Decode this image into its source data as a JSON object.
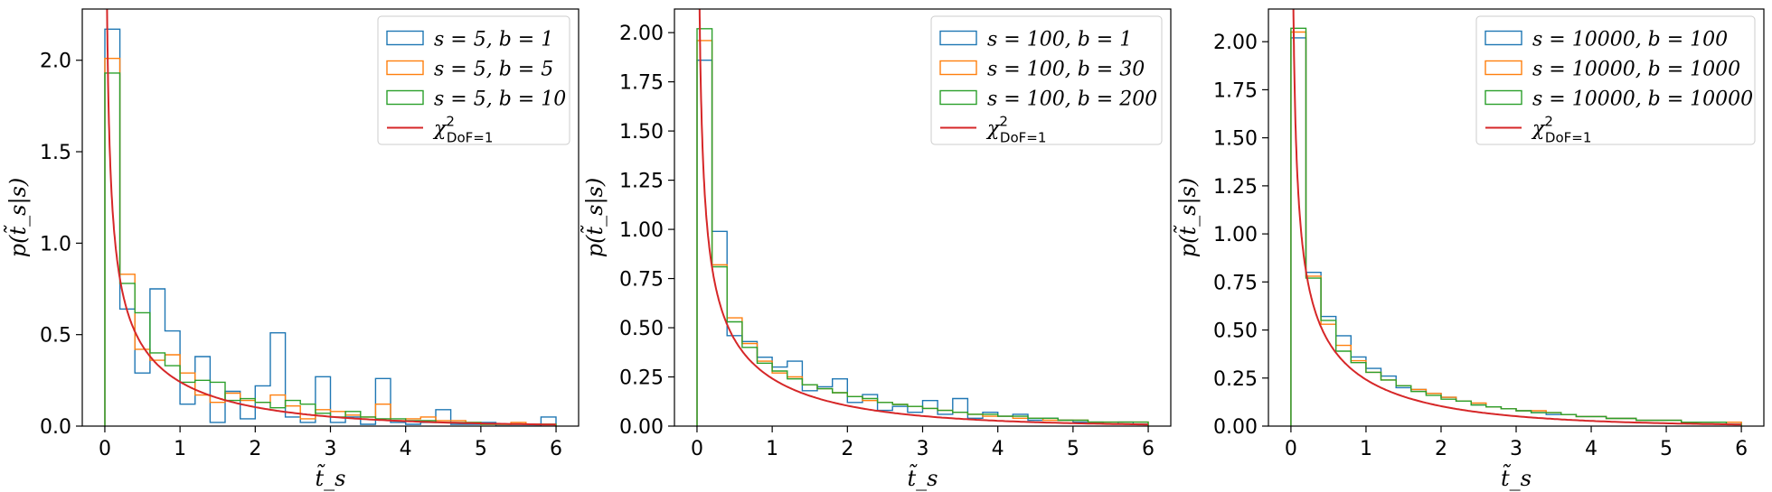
{
  "chart_data": [
    {
      "type": "line",
      "title": "",
      "xlabel": "t̃_s",
      "ylabel": "p(t̃_s|s)",
      "xlim": [
        -0.3,
        6.3
      ],
      "ylim": [
        0,
        2.28
      ],
      "xticks": [
        0,
        1,
        2,
        3,
        4,
        5,
        6
      ],
      "xtick_labels": [
        "0",
        "1",
        "2",
        "3",
        "4",
        "5",
        "6"
      ],
      "yticks": [
        0,
        0.5,
        1.0,
        1.5,
        2.0
      ],
      "ytick_labels": [
        "0.0",
        "0.5",
        "1.0",
        "1.5",
        "2.0"
      ],
      "grid": false,
      "legend_position": "top-right",
      "bin_width": 0.2,
      "series": [
        {
          "name": "s = 5, b = 1",
          "kind": "hist",
          "color": "#1f77b4",
          "values": [
            2.17,
            0.64,
            0.29,
            0.75,
            0.52,
            0.12,
            0.38,
            0.02,
            0.19,
            0.04,
            0.22,
            0.51,
            0.05,
            0.02,
            0.27,
            0.02,
            0.05,
            0.01,
            0.26,
            0.02,
            0.01,
            0.02,
            0.09,
            0.01,
            0.01,
            0.02,
            0.0,
            0.0,
            0.0,
            0.05
          ]
        },
        {
          "name": "s = 5, b = 5",
          "kind": "hist",
          "color": "#ff7f0e",
          "values": [
            2.01,
            0.83,
            0.42,
            0.36,
            0.39,
            0.29,
            0.17,
            0.13,
            0.18,
            0.14,
            0.13,
            0.17,
            0.11,
            0.04,
            0.09,
            0.08,
            0.06,
            0.05,
            0.12,
            0.03,
            0.04,
            0.05,
            0.03,
            0.03,
            0.02,
            0.01,
            0.01,
            0.02,
            0.01,
            0.01
          ]
        },
        {
          "name": "s = 5, b = 10",
          "kind": "hist",
          "color": "#2ca02c",
          "values": [
            1.93,
            0.78,
            0.62,
            0.4,
            0.33,
            0.24,
            0.25,
            0.24,
            0.14,
            0.15,
            0.13,
            0.1,
            0.14,
            0.12,
            0.07,
            0.05,
            0.08,
            0.05,
            0.04,
            0.04,
            0.03,
            0.03,
            0.02,
            0.02,
            0.02,
            0.01,
            0.01,
            0.01,
            0.01,
            0.01
          ]
        },
        {
          "name": "χ²_DoF=1",
          "kind": "line",
          "color": "#d62728",
          "function": "chi2_df1",
          "x": [
            0.02,
            6.0
          ]
        }
      ]
    },
    {
      "type": "line",
      "title": "",
      "xlabel": "t̃_s",
      "ylabel": "p(t̃_s|s)",
      "xlim": [
        -0.3,
        6.3
      ],
      "ylim": [
        0,
        2.12
      ],
      "xticks": [
        0,
        1,
        2,
        3,
        4,
        5,
        6
      ],
      "xtick_labels": [
        "0",
        "1",
        "2",
        "3",
        "4",
        "5",
        "6"
      ],
      "yticks": [
        0,
        0.25,
        0.5,
        0.75,
        1.0,
        1.25,
        1.5,
        1.75,
        2.0
      ],
      "ytick_labels": [
        "0.00",
        "0.25",
        "0.50",
        "0.75",
        "1.00",
        "1.25",
        "1.50",
        "1.75",
        "2.00"
      ],
      "grid": false,
      "legend_position": "top-right",
      "bin_width": 0.2,
      "series": [
        {
          "name": "s = 100, b = 1",
          "kind": "hist",
          "color": "#1f77b4",
          "values": [
            1.86,
            0.99,
            0.46,
            0.43,
            0.35,
            0.3,
            0.33,
            0.18,
            0.2,
            0.24,
            0.12,
            0.16,
            0.08,
            0.1,
            0.07,
            0.13,
            0.06,
            0.14,
            0.04,
            0.07,
            0.05,
            0.06,
            0.03,
            0.04,
            0.03,
            0.02,
            0.02,
            0.01,
            0.02,
            0.01
          ]
        },
        {
          "name": "s = 100, b = 30",
          "kind": "hist",
          "color": "#ff7f0e",
          "values": [
            1.96,
            0.82,
            0.55,
            0.42,
            0.33,
            0.27,
            0.25,
            0.21,
            0.19,
            0.17,
            0.15,
            0.13,
            0.12,
            0.11,
            0.1,
            0.09,
            0.08,
            0.07,
            0.06,
            0.05,
            0.05,
            0.04,
            0.04,
            0.03,
            0.03,
            0.03,
            0.02,
            0.02,
            0.02,
            0.02
          ]
        },
        {
          "name": "s = 100, b = 200",
          "kind": "hist",
          "color": "#2ca02c",
          "values": [
            2.02,
            0.81,
            0.53,
            0.4,
            0.32,
            0.28,
            0.24,
            0.21,
            0.19,
            0.17,
            0.15,
            0.14,
            0.12,
            0.11,
            0.1,
            0.09,
            0.08,
            0.07,
            0.06,
            0.06,
            0.05,
            0.05,
            0.04,
            0.04,
            0.03,
            0.03,
            0.02,
            0.02,
            0.02,
            0.02
          ]
        },
        {
          "name": "χ²_DoF=1",
          "kind": "line",
          "color": "#d62728",
          "function": "chi2_df1",
          "x": [
            0.02,
            6.0
          ]
        }
      ]
    },
    {
      "type": "line",
      "title": "",
      "xlabel": "t̃_s",
      "ylabel": "p(t̃_s|s)",
      "xlim": [
        -0.3,
        6.3
      ],
      "ylim": [
        0,
        2.17
      ],
      "xticks": [
        0,
        1,
        2,
        3,
        4,
        5,
        6
      ],
      "xtick_labels": [
        "0",
        "1",
        "2",
        "3",
        "4",
        "5",
        "6"
      ],
      "yticks": [
        0,
        0.25,
        0.5,
        0.75,
        1.0,
        1.25,
        1.5,
        1.75,
        2.0
      ],
      "ytick_labels": [
        "0.00",
        "0.25",
        "0.50",
        "0.75",
        "1.00",
        "1.25",
        "1.50",
        "1.75",
        "2.00"
      ],
      "grid": false,
      "legend_position": "top-right",
      "bin_width": 0.2,
      "series": [
        {
          "name": "s = 10000, b = 100",
          "kind": "hist",
          "color": "#1f77b4",
          "values": [
            2.02,
            0.8,
            0.57,
            0.47,
            0.36,
            0.3,
            0.26,
            0.2,
            0.19,
            0.17,
            0.15,
            0.13,
            0.11,
            0.1,
            0.09,
            0.08,
            0.07,
            0.06,
            0.06,
            0.05,
            0.05,
            0.04,
            0.04,
            0.03,
            0.03,
            0.03,
            0.02,
            0.02,
            0.02,
            0.02
          ]
        },
        {
          "name": "s = 10000, b = 1000",
          "kind": "hist",
          "color": "#ff7f0e",
          "values": [
            2.05,
            0.78,
            0.53,
            0.42,
            0.34,
            0.28,
            0.24,
            0.21,
            0.19,
            0.17,
            0.15,
            0.13,
            0.12,
            0.1,
            0.09,
            0.08,
            0.08,
            0.07,
            0.06,
            0.05,
            0.05,
            0.04,
            0.04,
            0.03,
            0.03,
            0.03,
            0.02,
            0.02,
            0.02,
            0.02
          ]
        },
        {
          "name": "s = 10000, b = 10000",
          "kind": "hist",
          "color": "#2ca02c",
          "values": [
            2.07,
            0.77,
            0.55,
            0.39,
            0.33,
            0.28,
            0.24,
            0.21,
            0.18,
            0.16,
            0.14,
            0.13,
            0.11,
            0.1,
            0.09,
            0.08,
            0.07,
            0.07,
            0.06,
            0.05,
            0.05,
            0.04,
            0.04,
            0.03,
            0.03,
            0.03,
            0.02,
            0.02,
            0.02,
            0.01
          ]
        },
        {
          "name": "χ²_DoF=1",
          "kind": "line",
          "color": "#d62728",
          "function": "chi2_df1",
          "x": [
            0.02,
            6.0
          ]
        }
      ]
    }
  ]
}
